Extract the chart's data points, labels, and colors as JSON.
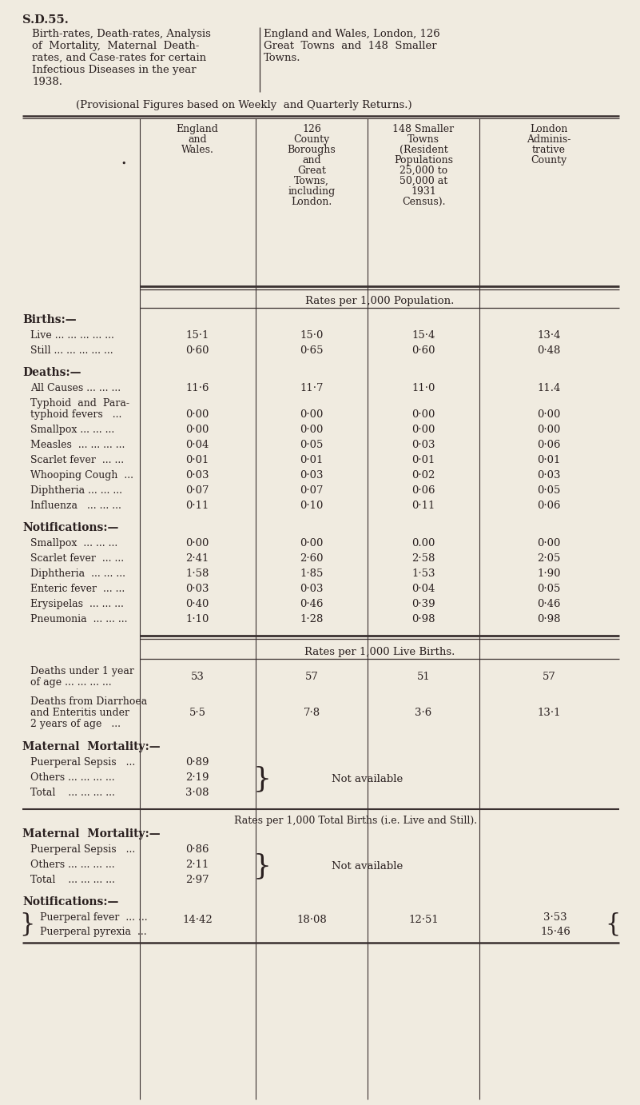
{
  "bg_color": "#f0ebe0",
  "text_color": "#2a2020",
  "title_ref": "S.D.55.",
  "title_left_lines": [
    "Birth-rates, Death-rates, Analysis",
    "of  Mortality,  Maternal  Death-",
    "rates, and Case-rates for certain",
    "Infectious Diseases in the year",
    "1938."
  ],
  "title_right_lines": [
    "England and Wales, London, 126",
    "Great  Towns  and  148  Smaller",
    "Towns."
  ],
  "subtitle": "(Provisional Figures based on Weekly  and Quarterly Returns.)",
  "col0_lines": [
    "England",
    "and",
    "Wales."
  ],
  "col1_lines": [
    "126",
    "County",
    "Boroughs",
    "and",
    "Great",
    "Towns,",
    "including",
    "London."
  ],
  "col2_lines": [
    "148 Smaller",
    "Towns",
    "(Resident",
    "Populations",
    "25,000 to",
    "50,000 at",
    "1931",
    "Census)."
  ],
  "col3_lines": [
    "London",
    "Adminis-",
    "trative",
    "County"
  ],
  "section1_label": "Rates per 1,000 Population.",
  "births_header": "Births:—",
  "births_rows": [
    [
      "Live ... ... ... ... ...",
      "15·1",
      "15·0",
      "15·4",
      "13·4"
    ],
    [
      "Still ... ... ... ... ...",
      "0·60",
      "0·65",
      "0·60",
      "0·48"
    ]
  ],
  "deaths_header": "Deaths:—",
  "deaths_rows": [
    [
      "All Causes ... ... ...",
      "11·6",
      "11·7",
      "11·0",
      "11.4"
    ],
    [
      "Typhoid  and  Para-||  typhoid fevers   ...",
      "0·00",
      "0·00",
      "0·00",
      "0·00"
    ],
    [
      "Smallpox ... ... ...",
      "0·00",
      "0·00",
      "0·00",
      "0·00"
    ],
    [
      "Measles  ... ... ... ...",
      "0·04",
      "0·05",
      "0·03",
      "0·06"
    ],
    [
      "Scarlet fever  ... ...",
      "0·01",
      "0·01",
      "0·01",
      "0·01"
    ],
    [
      "Whooping Cough  ...",
      "0·03",
      "0·03",
      "0·02",
      "0·03"
    ],
    [
      "Diphtheria ... ... ...",
      "0·07",
      "0·07",
      "0·06",
      "0·05"
    ],
    [
      "Influenza   ... ... ...",
      "0·11",
      "0·10",
      "0·11",
      "0·06"
    ]
  ],
  "notif_header": "Notifications:—",
  "notif_rows": [
    [
      "Smallpox  ... ... ...",
      "0·00",
      "0·00",
      "0.00",
      "0·00"
    ],
    [
      "Scarlet fever  ... ...",
      "2·41",
      "2·60",
      "2·58",
      "2·05"
    ],
    [
      "Diphtheria  ... ... ...",
      "1·58",
      "1·85",
      "1·53",
      "1·90"
    ],
    [
      "Enteric fever  ... ...",
      "0·03",
      "0·03",
      "0·04",
      "0·05"
    ],
    [
      "Erysipelas  ... ... ...",
      "0·40",
      "0·46",
      "0·39",
      "0·46"
    ],
    [
      "Pneumonia  ... ... ...",
      "1·10",
      "1·28",
      "0·98",
      "0·98"
    ]
  ],
  "section2_label": "Rates per 1,000 Live Births.",
  "live_rows": [
    [
      "Deaths under 1 year||  of age ... ... ... ...",
      "53",
      "57",
      "51",
      "57"
    ],
    [
      "Deaths from Diarrhoea||  and Enteritis under||  2 years of age   ...",
      "5·5",
      "7·8",
      "3·6",
      "13·1"
    ]
  ],
  "maternal1_header": "Maternal  Mortality:—",
  "maternal1_rows": [
    [
      "Puerperal Sepsis   ...",
      "0·89"
    ],
    [
      "Others ... ... ... ...",
      "2·19"
    ],
    [
      "Total    ... ... ... ...",
      "3·08"
    ]
  ],
  "maternal1_notavail": "Not available",
  "section3_label": "Rates per 1,000 Total Births (i.e. Live and Still).",
  "maternal2_header": "Maternal  Mortality:—",
  "maternal2_rows": [
    [
      "Puerperal Sepsis   ...",
      "0·86"
    ],
    [
      "Others ... ... ... ...",
      "2·11"
    ],
    [
      "Total    ... ... ... ...",
      "2·97"
    ]
  ],
  "maternal2_notavail": "Not available",
  "notif2_header": "Notifications:—",
  "notif2_label1": "Puerperal fever  ... ...",
  "notif2_label2": "Puerperal pyrexia  ...",
  "notif2_val0": "14·42",
  "notif2_val1": "18·08",
  "notif2_val2": "12·51",
  "notif2_val3a": "3·53",
  "notif2_val3b": "15·46"
}
